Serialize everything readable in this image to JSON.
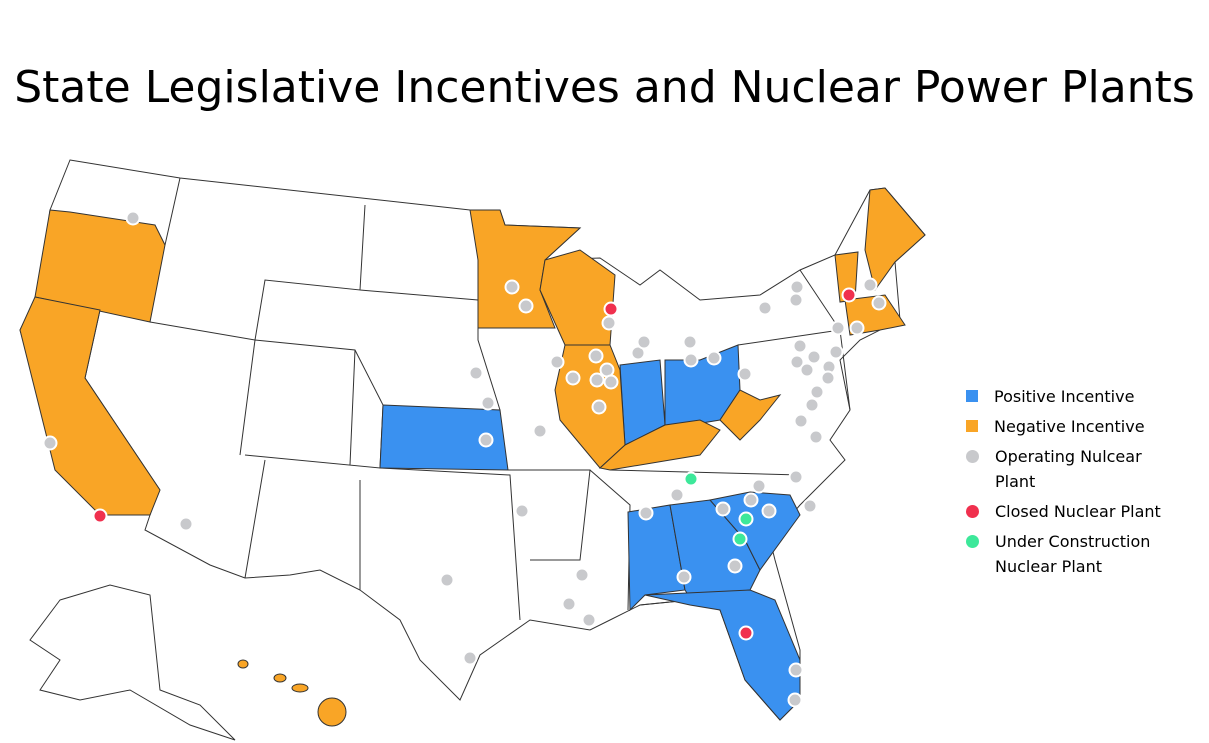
{
  "title": "State Legislative Incentives and Nuclear Power Plants",
  "legend": [
    {
      "label": "Positive Incentive",
      "color": "#3a91f0",
      "marker": "square"
    },
    {
      "label": "Negative Incentive",
      "color": "#f9a526",
      "marker": "square"
    },
    {
      "label": "Operating Nulcear Plant",
      "color": "#c8c9cc",
      "marker": "circle"
    },
    {
      "label": "Closed Nuclear Plant",
      "color": "#f0304e",
      "marker": "circle"
    },
    {
      "label": "Under Construction Nuclear Plant",
      "color": "#3de89a",
      "marker": "circle"
    }
  ]
}
